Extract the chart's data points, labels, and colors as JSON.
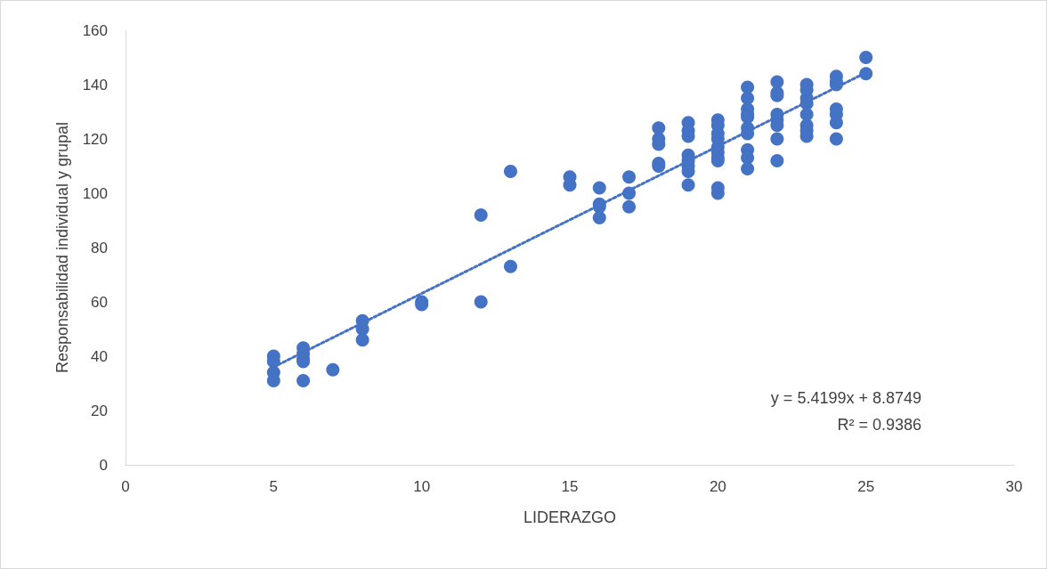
{
  "chart_data": {
    "type": "scatter",
    "xlabel": "LIDERAZGO",
    "ylabel": "Responsabilidad individual y grupal",
    "xlim": [
      0,
      30
    ],
    "xticks": [
      0,
      5,
      10,
      15,
      20,
      25,
      30
    ],
    "ylim": [
      0,
      160
    ],
    "yticks": [
      0,
      20,
      40,
      60,
      80,
      100,
      120,
      140,
      160
    ],
    "grid": false,
    "annotations": [
      "y = 5.4199x + 8.8749",
      "R² = 0.9386"
    ],
    "series": [
      {
        "type": "scatter",
        "color": "#4472c4",
        "marker": "circle",
        "x": [
          5,
          5,
          5,
          5,
          6,
          6,
          6,
          6,
          6,
          7,
          8,
          8,
          8,
          10,
          10,
          12,
          12,
          13,
          13,
          15,
          15,
          16,
          16,
          16,
          16,
          17,
          17,
          17,
          18,
          18,
          18,
          18,
          18,
          19,
          19,
          19,
          19,
          19,
          19,
          19,
          19,
          20,
          20,
          20,
          20,
          20,
          20,
          20,
          20,
          20,
          20,
          21,
          21,
          21,
          21,
          21,
          21,
          21,
          21,
          21,
          21,
          22,
          22,
          22,
          22,
          22,
          22,
          22,
          22,
          23,
          23,
          23,
          23,
          23,
          23,
          23,
          23,
          24,
          24,
          24,
          24,
          24,
          24,
          24,
          25,
          25
        ],
        "values": [
          40,
          38,
          34,
          31,
          43,
          41,
          39,
          38,
          31,
          35,
          53,
          50,
          46,
          60,
          59,
          92,
          60,
          108,
          73,
          106,
          103,
          102,
          96,
          95,
          91,
          106,
          100,
          95,
          124,
          120,
          118,
          111,
          110,
          126,
          123,
          121,
          114,
          112,
          110,
          108,
          103,
          127,
          125,
          122,
          120,
          117,
          115,
          113,
          112,
          102,
          100,
          139,
          135,
          131,
          129,
          128,
          124,
          122,
          116,
          113,
          109,
          141,
          137,
          136,
          129,
          127,
          125,
          120,
          112,
          140,
          138,
          135,
          133,
          129,
          125,
          123,
          121,
          143,
          141,
          140,
          131,
          129,
          126,
          120,
          150,
          144
        ]
      },
      {
        "type": "line",
        "color": "#4472c4",
        "marker": "none",
        "line_style": "dotted",
        "x": [
          5,
          25
        ],
        "values": [
          36.0,
          144.4
        ]
      }
    ]
  }
}
